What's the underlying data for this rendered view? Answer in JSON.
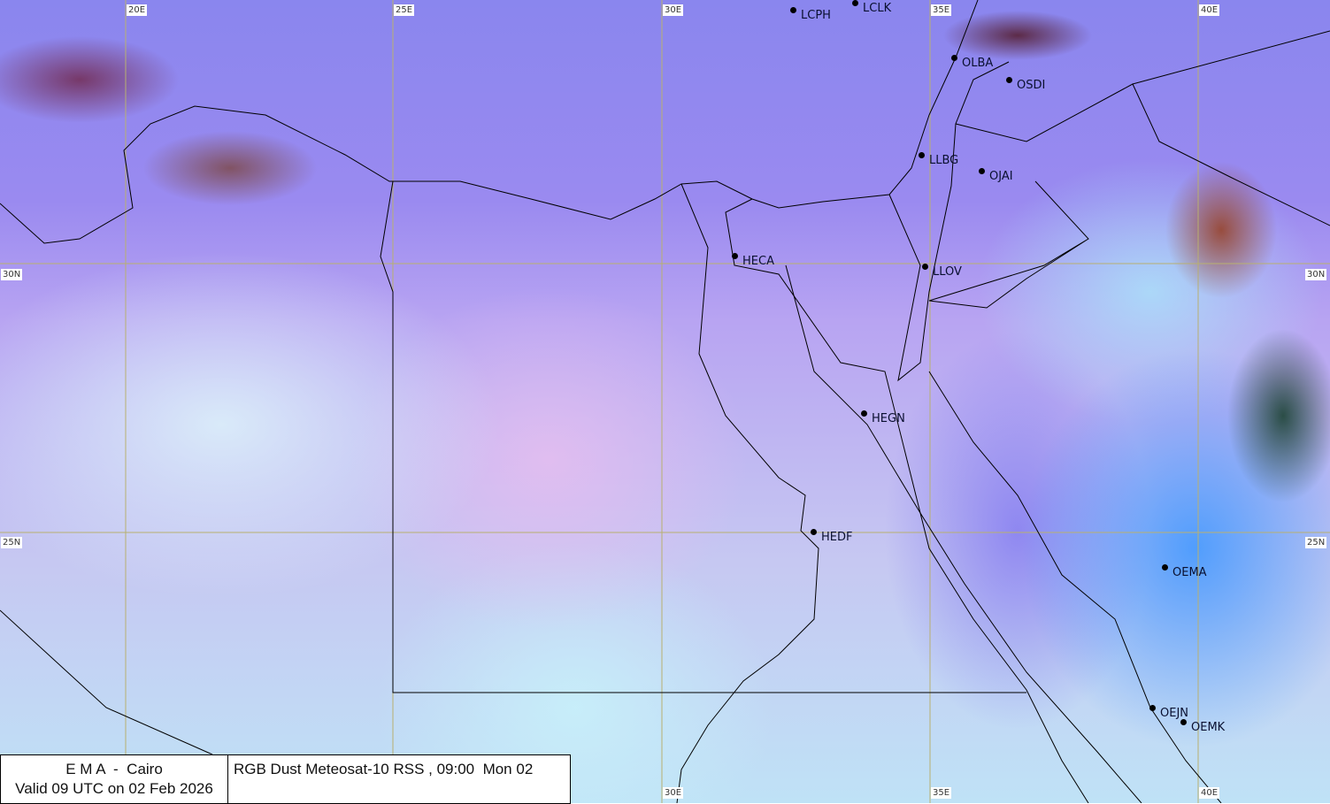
{
  "map": {
    "product": "RGB Dust Meteosat-10 RSS",
    "longitude_labels_top": [
      "20E",
      "25E",
      "30E",
      "35E",
      "40E"
    ],
    "longitude_labels_bottom": [
      "30E",
      "35E",
      "40E"
    ],
    "latitude_labels": [
      "30N",
      "25N"
    ],
    "stations": [
      "LCPH",
      "LCLK",
      "OLBA",
      "OSDI",
      "LLBG",
      "OJAI",
      "HECA",
      "LLOV",
      "HEGN",
      "HEDF",
      "OEMA",
      "OEJN",
      "OEMK"
    ]
  },
  "legend": {
    "org": "E M A  -  Cairo",
    "valid": "Valid 09 UTC on 02 Feb 2026",
    "title": "RGB Dust Meteosat-10 RSS , 09:00  Mon 02"
  },
  "colors": {
    "grid": "#b8b070",
    "border": "#000000"
  }
}
